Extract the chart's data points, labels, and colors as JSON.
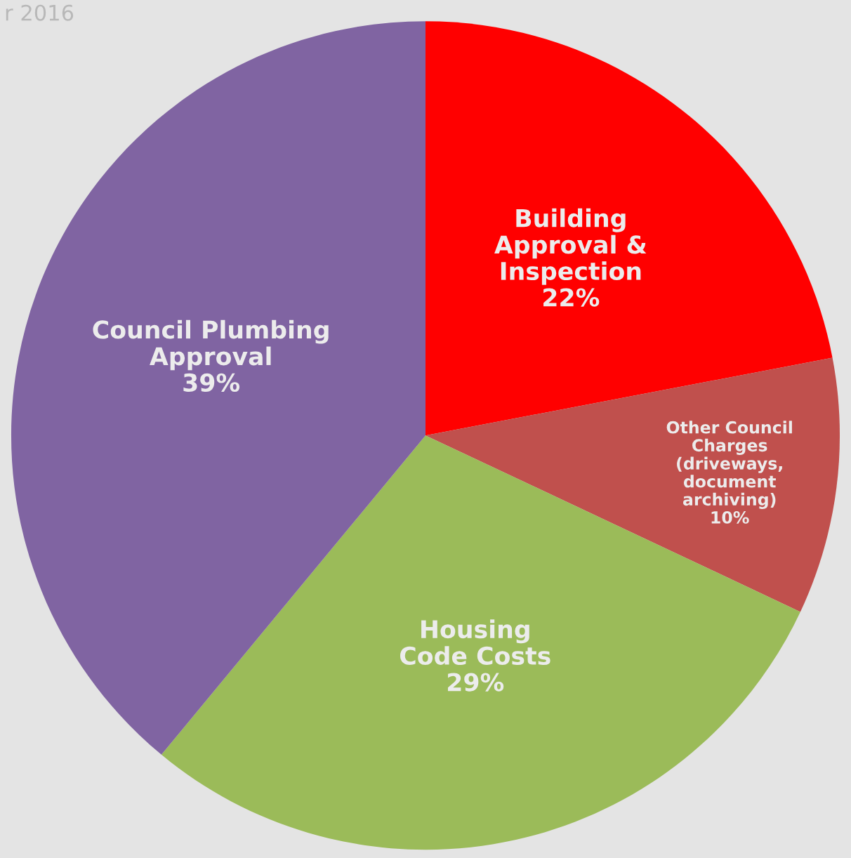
{
  "chart_data": {
    "type": "pie",
    "categories": [
      "Building\nApproval &\nInspection",
      "Other Council\nCharges\n(driveways,\ndocument\narchiving)",
      "Housing\nCode Costs",
      "Council Plumbing\nApproval"
    ],
    "values": [
      22,
      10,
      29,
      39
    ],
    "value_labels": [
      "22%",
      "10%",
      "29%",
      "39%"
    ],
    "colors": [
      "#ff0000",
      "#c0504d",
      "#9bbb59",
      "#8064a2"
    ],
    "annotations": [
      "r 2016"
    ],
    "legend": false
  }
}
